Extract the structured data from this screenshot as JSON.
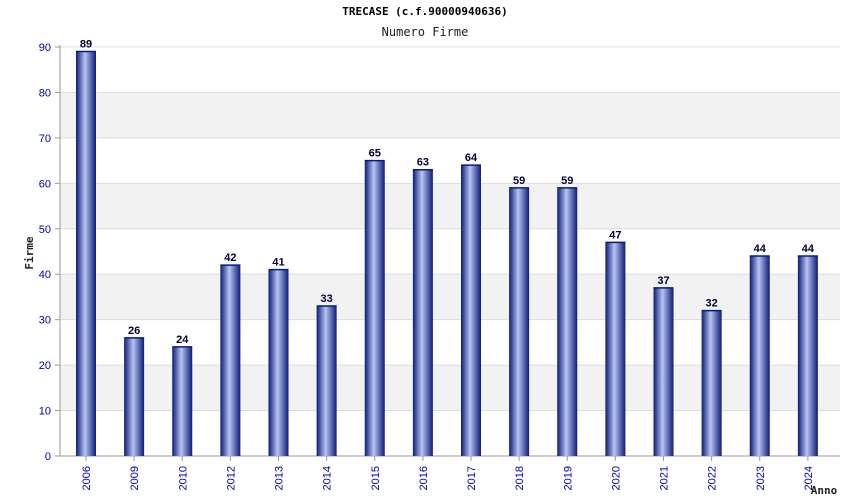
{
  "header": {
    "title": "TRECASE (c.f.90000940636)",
    "subtitle": "Numero Firme"
  },
  "colors": {
    "bar_dark": "#0b1a7a",
    "bar_light": "#b8c4f0",
    "band": "#f2f2f2",
    "tick_text": "#0000aa"
  },
  "chart_data": {
    "type": "bar",
    "title": "TRECASE (c.f.90000940636)",
    "subtitle": "Numero Firme",
    "xlabel": "Anno",
    "ylabel": "Firme",
    "categories": [
      "2006",
      "2009",
      "2010",
      "2012",
      "2013",
      "2014",
      "2015",
      "2016",
      "2017",
      "2018",
      "2019",
      "2020",
      "2021",
      "2022",
      "2023",
      "2024"
    ],
    "values": [
      89,
      26,
      24,
      42,
      41,
      33,
      65,
      63,
      64,
      59,
      59,
      47,
      37,
      32,
      44,
      44
    ],
    "ylim": [
      0,
      90
    ],
    "yticks": [
      0,
      10,
      20,
      30,
      40,
      50,
      60,
      70,
      80,
      90
    ],
    "grid": true,
    "data_labels": true
  }
}
